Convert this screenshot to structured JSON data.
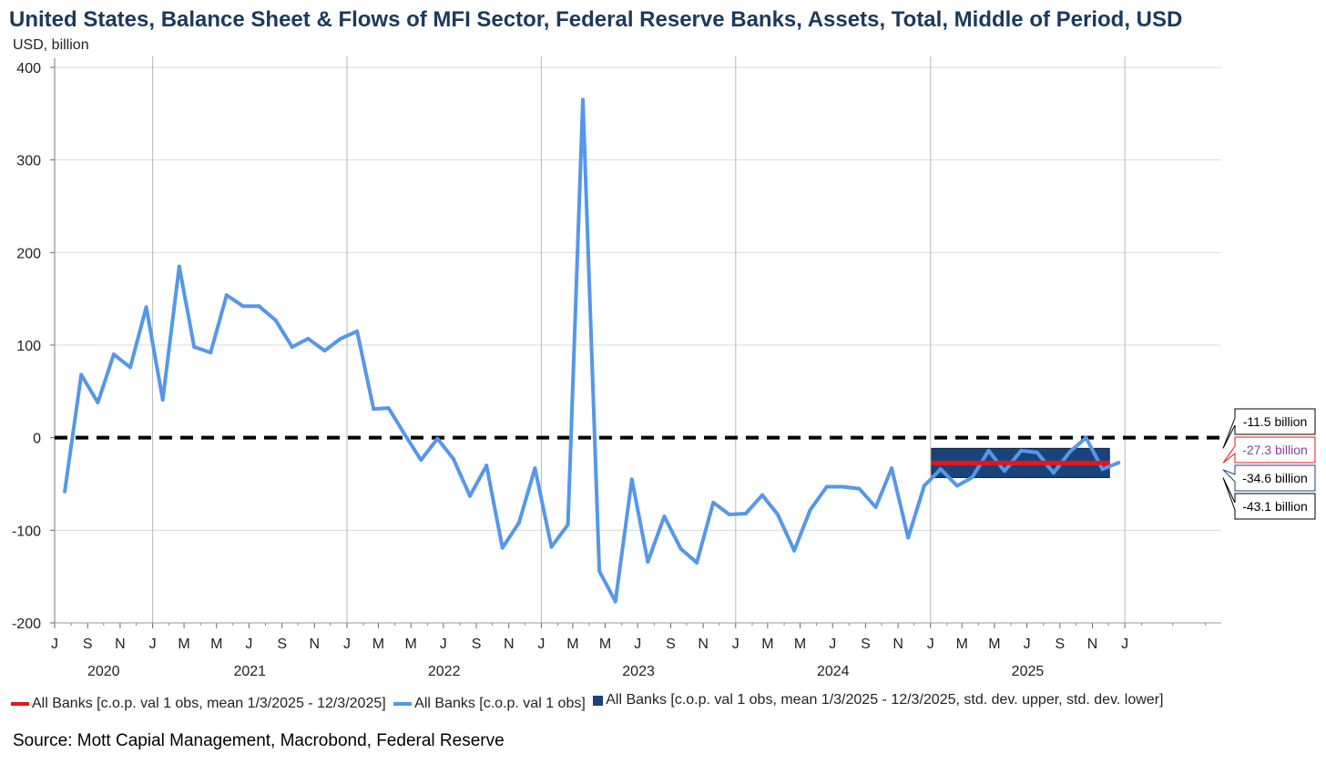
{
  "title": "United States, Balance Sheet & Flows of MFI Sector, Federal Reserve Banks, Assets, Total, Middle of Period, USD",
  "unit_label": "USD, billion",
  "source": "Source: Mott Capial Management, Macrobond, Federal Reserve",
  "colors": {
    "line": "#5597ea",
    "mean": "#e8141b",
    "band": "#1c4379",
    "zero": "#000000",
    "grid": "#d9d9d9",
    "year_grid": "#b8b8b8"
  },
  "legend": [
    {
      "label": "All Banks [c.o.p. val 1 obs, mean 1/3/2025 - 12/3/2025]",
      "color": "#e8141b",
      "kind": "line"
    },
    {
      "label": "All Banks [c.o.p. val 1 obs]",
      "color": "#5597ea",
      "kind": "line"
    },
    {
      "label": "All Banks [c.o.p. val 1 obs, mean 1/3/2025 - 12/3/2025, std. dev. upper, std. dev. lower]",
      "color": "#1c4379",
      "kind": "box"
    }
  ],
  "chart_data": {
    "type": "line",
    "title": "United States, Balance Sheet & Flows of MFI Sector, Federal Reserve Banks, Assets, Total, Middle of Period, USD",
    "ylabel": "USD, billion",
    "ylim": [
      -200,
      400
    ],
    "yticks": [
      400,
      300,
      200,
      100,
      0,
      -100,
      -200
    ],
    "xlim": [
      "2020-07-01",
      "2026-07-01"
    ],
    "month_ticks": [
      "J",
      "S",
      "N",
      "J",
      "M",
      "M",
      "J",
      "S",
      "N",
      "J",
      "M",
      "M",
      "J",
      "S",
      "N",
      "J",
      "M",
      "M",
      "J",
      "S",
      "N",
      "J",
      "M",
      "M",
      "J",
      "S",
      "N",
      "J",
      "M",
      "M",
      "J",
      "S",
      "N",
      "J"
    ],
    "years": [
      "2020",
      "2021",
      "2022",
      "2023",
      "2024",
      "2025"
    ],
    "series": [
      {
        "name": "All Banks [c.o.p. val 1 obs]",
        "x": [
          "2020-07-20",
          "2020-08-20",
          "2020-09-20",
          "2020-10-20",
          "2020-11-20",
          "2020-12-20",
          "2021-01-20",
          "2021-02-20",
          "2021-03-20",
          "2021-04-20",
          "2021-05-20",
          "2021-06-20",
          "2021-07-20",
          "2021-08-20",
          "2021-09-20",
          "2021-10-20",
          "2021-11-20",
          "2021-12-20",
          "2022-01-20",
          "2022-02-20",
          "2022-03-20",
          "2022-04-20",
          "2022-05-20",
          "2022-06-20",
          "2022-07-20",
          "2022-08-20",
          "2022-09-20",
          "2022-10-20",
          "2022-11-20",
          "2022-12-20",
          "2023-01-20",
          "2023-02-20",
          "2023-03-20",
          "2023-04-20",
          "2023-05-20",
          "2023-06-20",
          "2023-07-20",
          "2023-08-20",
          "2023-09-20",
          "2023-10-20",
          "2023-11-20",
          "2023-12-20",
          "2024-01-20",
          "2024-02-20",
          "2024-03-20",
          "2024-04-20",
          "2024-05-20",
          "2024-06-20",
          "2024-07-20",
          "2024-08-20",
          "2024-09-20",
          "2024-10-20",
          "2024-11-20",
          "2024-12-20",
          "2025-01-20",
          "2025-02-20",
          "2025-03-20",
          "2025-04-20",
          "2025-05-20",
          "2025-06-20",
          "2025-07-20",
          "2025-08-20",
          "2025-09-20",
          "2025-10-20",
          "2025-11-20",
          "2025-12-20"
        ],
        "values": [
          -58,
          68,
          38,
          90,
          76,
          141,
          41,
          185,
          98,
          92,
          154,
          142,
          142,
          127,
          98,
          107,
          94,
          107,
          115,
          31,
          32,
          3,
          -24,
          -1,
          -23,
          -63,
          -30,
          -119,
          -92,
          -33,
          -118,
          -94,
          365,
          -144,
          -177,
          -45,
          -134,
          -85,
          -120,
          -135,
          -70,
          -83,
          -82,
          -62,
          -83,
          -122,
          -78,
          -53,
          -53,
          -55,
          -75,
          -33,
          -108,
          -52,
          -34,
          -52,
          -43,
          -14,
          -36,
          -14,
          -16,
          -38,
          -15,
          0,
          -34,
          -27
        ]
      }
    ],
    "mean": {
      "name": "All Banks [c.o.p. val 1 obs, mean 1/3/2025 - 12/3/2025]",
      "value": -27.3,
      "start": "2025-01-03",
      "end": "2025-12-03"
    },
    "std_band": {
      "name": "All Banks [c.o.p. val 1 obs, mean 1/3/2025 - 12/3/2025, std. dev. upper, std. dev. lower]",
      "upper": -11.5,
      "lower": -43.1,
      "start": "2025-01-03",
      "end": "2025-12-03"
    },
    "zero_line": 0,
    "value_labels": [
      {
        "text": "-11.5 billion",
        "value": -11.5,
        "border": "#000000",
        "color": "#000000"
      },
      {
        "text": "-27.3 billion",
        "value": -27.3,
        "border": "#e8141b",
        "color": "#8a3fa0"
      },
      {
        "text": "-34.6 billion",
        "value": -34.6,
        "border": "#1c4379",
        "color": "#000000"
      },
      {
        "text": "-43.1 billion",
        "value": -43.1,
        "border": "#000000",
        "color": "#000000"
      }
    ]
  }
}
